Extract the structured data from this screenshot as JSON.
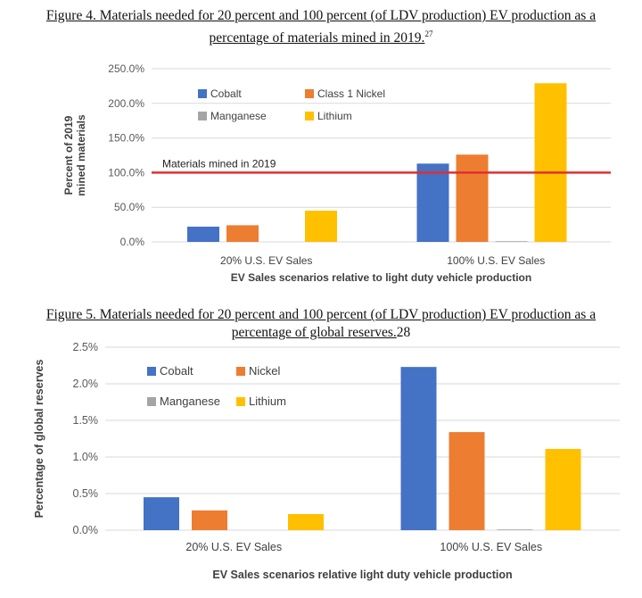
{
  "figure4": {
    "caption_line1": "Figure 4.  Materials needed for 20 percent and 100 percent (of LDV production) EV production as a",
    "caption_line2": "percentage of materials mined in 2019.",
    "footnote": "27"
  },
  "figure5": {
    "caption_line1": "Figure 5.  Materials needed for 20 percent and 100 percent (of LDV production) EV production as a",
    "caption_line2": "percentage of global reserves.",
    "footnote": "28"
  },
  "colors": {
    "cobalt": "#4472c4",
    "nickel": "#ed7d31",
    "manganese": "#a5a5a5",
    "lithium": "#ffc000",
    "reference_line": "#e03030",
    "grid": "#d9d9d9"
  },
  "chart_data": [
    {
      "type": "bar",
      "categories": [
        "20% U.S. EV Sales",
        "100% U.S. EV Sales"
      ],
      "series": [
        {
          "name": "Cobalt",
          "values": [
            22,
            113
          ]
        },
        {
          "name": "Class 1 Nickel",
          "values": [
            24,
            126
          ]
        },
        {
          "name": "Manganese",
          "values": [
            0,
            1
          ]
        },
        {
          "name": "Lithium",
          "values": [
            45,
            229
          ]
        }
      ],
      "ylabel": "Percent of 2019 mined materials",
      "xlabel": "EV Sales scenarios relative to light duty vehicle production",
      "ylim": [
        0,
        250
      ],
      "yticks": [
        "0.0%",
        "50.0%",
        "100.0%",
        "150.0%",
        "200.0%",
        "250.0%"
      ],
      "reference_line": {
        "label": "Materials mined in 2019",
        "value": 100
      },
      "grid": true,
      "legend_position": "top-left"
    },
    {
      "type": "bar",
      "categories": [
        "20% U.S. EV Sales",
        "100% U.S. EV Sales"
      ],
      "series": [
        {
          "name": "Cobalt",
          "values": [
            0.45,
            2.23
          ]
        },
        {
          "name": "Nickel",
          "values": [
            0.27,
            1.34
          ]
        },
        {
          "name": "Manganese",
          "values": [
            0,
            0.01
          ]
        },
        {
          "name": "Lithium",
          "values": [
            0.22,
            1.11
          ]
        }
      ],
      "ylabel": "Percentage of global reserves",
      "xlabel": "EV Sales scenarios relative light duty vehicle production",
      "ylim": [
        0,
        2.5
      ],
      "yticks": [
        "0.0%",
        "0.5%",
        "1.0%",
        "1.5%",
        "2.0%",
        "2.5%"
      ],
      "grid": true,
      "legend_position": "top-left"
    }
  ]
}
